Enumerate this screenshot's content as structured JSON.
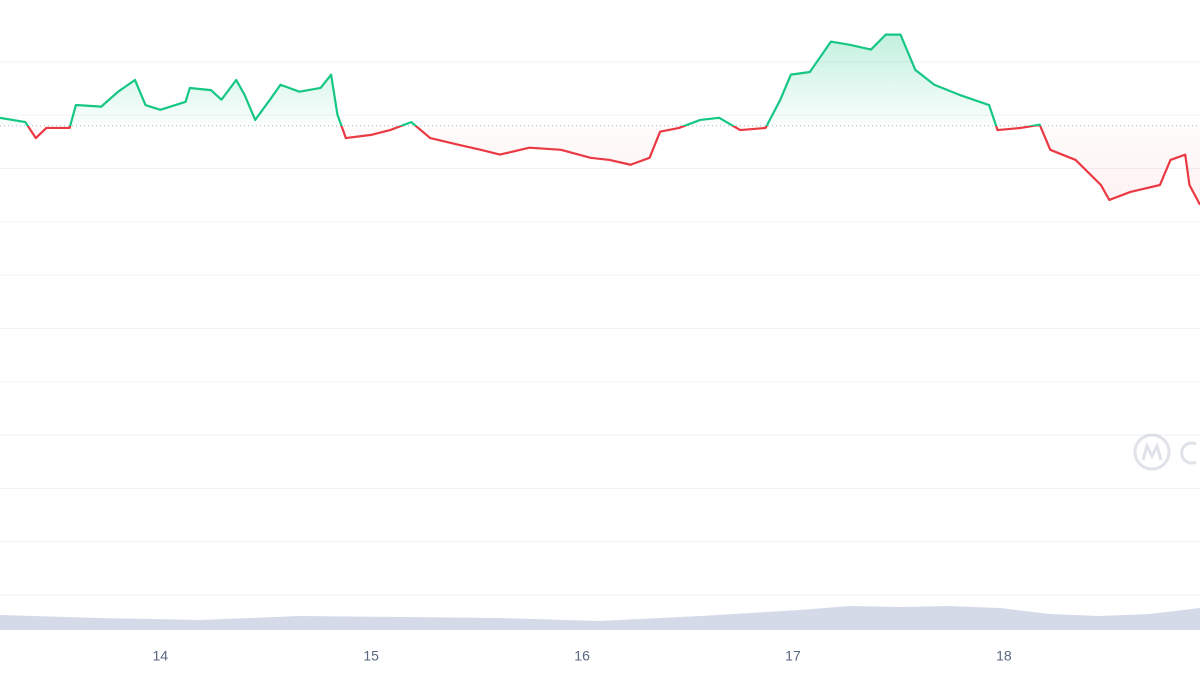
{
  "chart_data": {
    "type": "line",
    "xlim": [
      13.24,
      18.93
    ],
    "xticks": [
      14,
      15,
      16,
      17,
      18
    ],
    "ylim": [
      0,
      11.16
    ],
    "yticks": [
      0,
      1,
      2,
      3,
      4,
      5,
      6,
      7,
      8,
      9,
      10
    ],
    "grid": true,
    "baseline": 8.8,
    "up_color": "#16c784",
    "down_color": "#ea3943",
    "series": [
      {
        "x": [
          13.24,
          13.36,
          13.41,
          13.46,
          13.57,
          13.6,
          13.72,
          13.8,
          13.88,
          13.93,
          14.0,
          14.12,
          14.14,
          14.24,
          14.29,
          14.36,
          14.4,
          14.45,
          14.52,
          14.57,
          14.66,
          14.76,
          14.81,
          14.84,
          14.88,
          15.0,
          15.09,
          15.19,
          15.28,
          15.42,
          15.52,
          15.61,
          15.75,
          15.9,
          16.04,
          16.13,
          16.23,
          16.32,
          16.37,
          16.46,
          16.56,
          16.65,
          16.75,
          16.87,
          16.94,
          16.99,
          17.08,
          17.18,
          17.27,
          17.37,
          17.44,
          17.51,
          17.58,
          17.67,
          17.79,
          17.93,
          17.97,
          18.08,
          18.17,
          18.22,
          18.34,
          18.46,
          18.5,
          18.6,
          18.74,
          18.79,
          18.86,
          18.88,
          18.93
        ],
        "values": [
          8.95,
          8.87,
          8.57,
          8.76,
          8.76,
          9.19,
          9.16,
          9.44,
          9.66,
          9.19,
          9.1,
          9.25,
          9.51,
          9.47,
          9.29,
          9.66,
          9.38,
          8.91,
          9.29,
          9.57,
          9.44,
          9.51,
          9.76,
          9.01,
          8.57,
          8.63,
          8.72,
          8.87,
          8.57,
          8.44,
          8.35,
          8.26,
          8.39,
          8.35,
          8.2,
          8.16,
          8.07,
          8.2,
          8.69,
          8.76,
          8.91,
          8.95,
          8.72,
          8.76,
          9.29,
          9.76,
          9.81,
          10.38,
          10.32,
          10.23,
          10.51,
          10.51,
          9.85,
          9.57,
          9.38,
          9.19,
          8.72,
          8.76,
          8.82,
          8.35,
          8.16,
          7.69,
          7.41,
          7.56,
          7.69,
          8.16,
          8.26,
          7.69,
          7.32
        ]
      }
    ],
    "volume": {
      "color": "#cfd6e4",
      "ylim": [
        0,
        70
      ],
      "x": [
        13.24,
        13.71,
        14.19,
        14.66,
        15.14,
        15.61,
        16.08,
        16.56,
        17.03,
        17.27,
        17.51,
        17.74,
        17.98,
        18.22,
        18.45,
        18.69,
        18.93
      ],
      "values": [
        15,
        12,
        10,
        14,
        13,
        12,
        9,
        14,
        20,
        24,
        23,
        24,
        22,
        16,
        14,
        16,
        22
      ]
    }
  }
}
